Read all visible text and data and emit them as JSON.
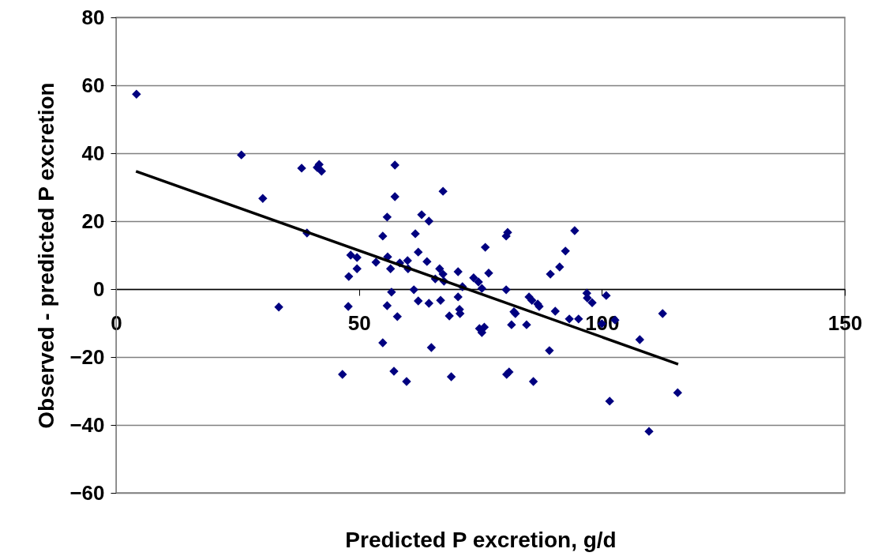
{
  "chart_data": {
    "type": "scatter",
    "xlabel": "Predicted P excretion, g/d",
    "ylabel": "Observed - predicted P excretion",
    "xlim": [
      0,
      150
    ],
    "xticks": [
      0,
      50,
      100,
      150
    ],
    "ylim": [
      -60,
      80
    ],
    "yticks": [
      -60,
      -40,
      -20,
      0,
      20,
      40,
      60,
      80
    ],
    "grid": "y",
    "series": [
      {
        "type": "scatter",
        "marker": "diamond",
        "color": "#000080",
        "x": [
          4.2,
          25.8,
          30.2,
          33.5,
          38.2,
          39.3,
          41.4,
          41.8,
          42.3,
          46.6,
          47.8,
          47.9,
          48.3,
          49.6,
          49.6,
          53.5,
          54.9,
          54.9,
          55.8,
          55.8,
          55.9,
          56.5,
          56.7,
          57.2,
          57.4,
          57.4,
          57.9,
          58.4,
          59.8,
          60.0,
          60.1,
          61.3,
          61.6,
          62.2,
          62.2,
          62.9,
          64.0,
          64.4,
          64.4,
          64.9,
          65.7,
          66.6,
          66.8,
          67.3,
          67.3,
          67.5,
          68.6,
          69.0,
          70.4,
          70.4,
          70.7,
          70.8,
          71.3,
          73.6,
          74.6,
          74.8,
          75.3,
          75.3,
          75.8,
          76.0,
          76.7,
          80.3,
          80.3,
          80.6,
          80.4,
          80.9,
          81.4,
          81.9,
          82.2,
          84.5,
          85.0,
          85.6,
          85.9,
          86.8,
          87.1,
          89.2,
          89.4,
          90.4,
          91.3,
          92.5,
          93.3,
          94.4,
          95.2,
          96.9,
          97.0,
          98.0,
          100.0,
          100.9,
          101.6,
          102.7,
          107.8,
          109.7,
          112.5,
          115.6
        ],
        "values": [
          57.4,
          39.5,
          26.7,
          -5.3,
          35.6,
          16.5,
          35.8,
          36.7,
          34.7,
          -25.1,
          -5.1,
          3.7,
          10.0,
          9.3,
          6.0,
          7.9,
          15.6,
          -15.8,
          21.2,
          -4.9,
          9.5,
          6.0,
          -0.9,
          -24.2,
          36.5,
          27.2,
          -8.1,
          7.7,
          -27.2,
          8.4,
          6.0,
          -0.2,
          16.3,
          10.9,
          -3.5,
          21.9,
          8.1,
          20.0,
          -4.2,
          -17.2,
          3.0,
          6.0,
          -3.3,
          28.8,
          4.4,
          2.3,
          -7.9,
          -25.8,
          5.1,
          -2.3,
          -6.0,
          -7.2,
          0.7,
          3.3,
          2.1,
          -11.6,
          -12.8,
          0.2,
          -11.2,
          12.3,
          4.7,
          -0.2,
          15.6,
          16.7,
          -25.1,
          -24.4,
          -10.5,
          -6.7,
          -7.2,
          -10.5,
          -2.3,
          -3.3,
          -27.2,
          -4.4,
          -5.1,
          -18.1,
          4.4,
          -6.5,
          6.5,
          11.2,
          -8.8,
          17.2,
          -8.8,
          -1.2,
          -2.6,
          -4.0,
          -10.2,
          -1.9,
          -33.0,
          -9.1,
          -14.9,
          -41.9,
          -7.2,
          -30.5
        ]
      },
      {
        "type": "line",
        "color": "#000000",
        "x": [
          4.1,
          115.7
        ],
        "values": [
          34.7,
          -22.1
        ]
      }
    ]
  }
}
